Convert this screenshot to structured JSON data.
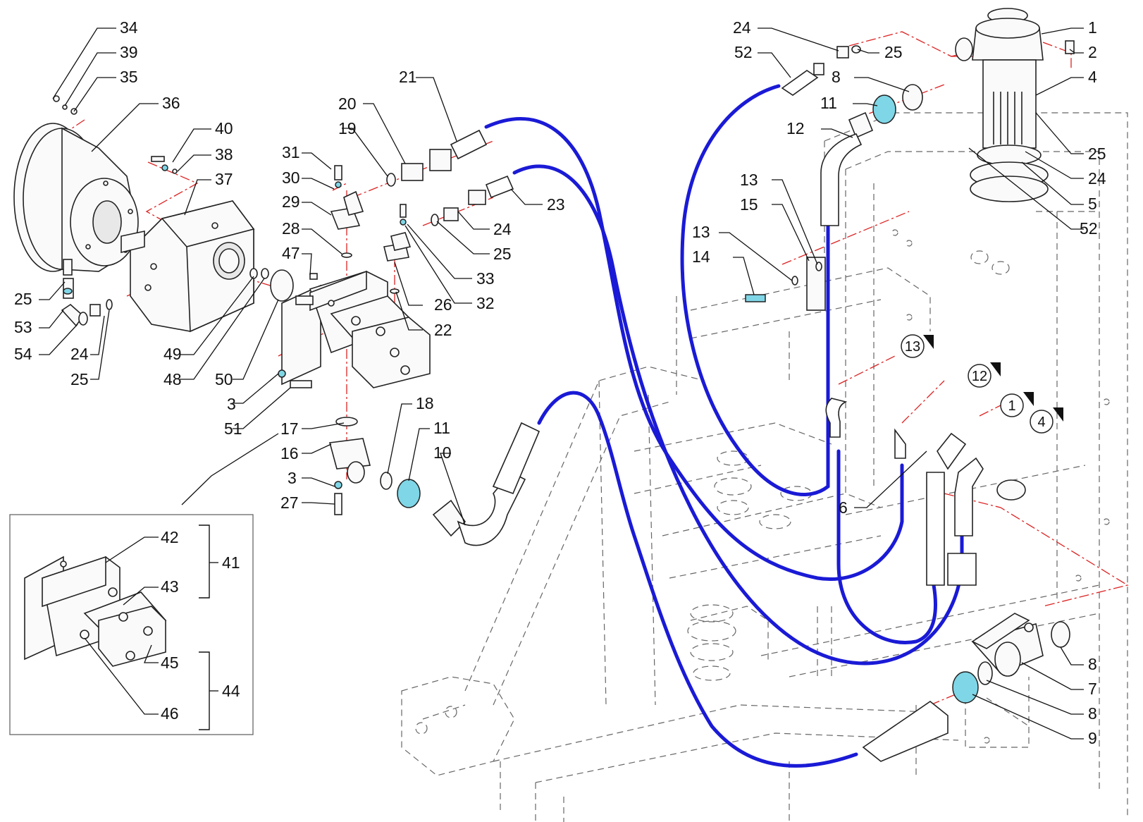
{
  "diagram": {
    "callout_labels": [
      "34",
      "39",
      "35",
      "36",
      "40",
      "38",
      "37",
      "25",
      "53",
      "54",
      "24",
      "25",
      "49",
      "48",
      "50",
      "3",
      "51",
      "31",
      "30",
      "29",
      "28",
      "47",
      "19",
      "20",
      "21",
      "23",
      "24",
      "25",
      "33",
      "32",
      "26",
      "22",
      "17",
      "16",
      "3",
      "27",
      "18",
      "11",
      "10",
      "24",
      "52",
      "25",
      "8",
      "11",
      "12",
      "13",
      "15",
      "13",
      "14",
      "1",
      "2",
      "4",
      "25",
      "24",
      "5",
      "52",
      "6",
      "8",
      "7",
      "8",
      "9",
      "41",
      "42",
      "43",
      "44",
      "45",
      "46"
    ],
    "connection_refs": [
      "13",
      "12",
      "1",
      "4"
    ],
    "inset": {
      "group_labels": [
        "41",
        "44"
      ]
    },
    "colors": {
      "hose": "#1a1ad6",
      "centerline": "#dd2222",
      "fitting_highlight": "#7fd6e6",
      "outline": "#222222"
    }
  }
}
